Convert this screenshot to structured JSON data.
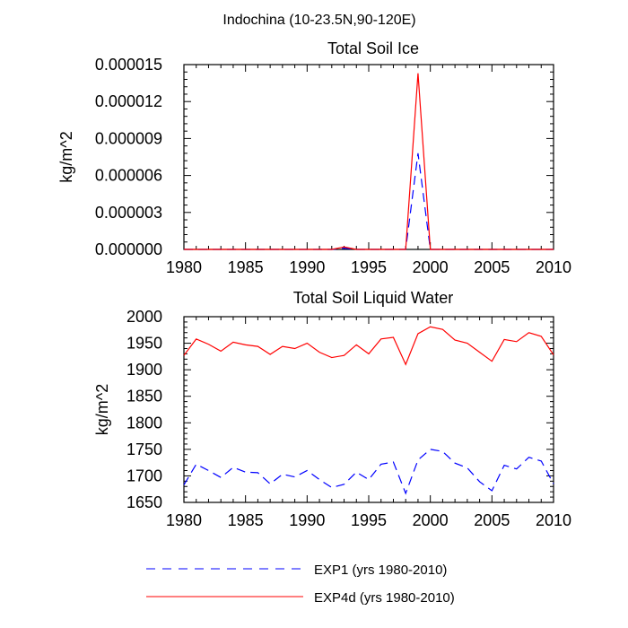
{
  "figure_title": "Indochina (10-23.5N,90-120E)",
  "colors": {
    "exp1": "#0000ff",
    "exp4d": "#ff0000",
    "axis": "#000000"
  },
  "legend": [
    {
      "label": "EXP1 (yrs 1980-2010)",
      "color": "#0000ff",
      "dash": "dashed"
    },
    {
      "label": "EXP4d (yrs 1980-2010)",
      "color": "#ff0000",
      "dash": "solid"
    }
  ],
  "chart_data": [
    {
      "type": "line",
      "title": "Total Soil Ice",
      "xlabel": "",
      "ylabel": "kg/m^2",
      "xlim": [
        1980,
        2010
      ],
      "ylim": [
        0,
        1.5e-05
      ],
      "xticks": [
        1980,
        1985,
        1990,
        1995,
        2000,
        2005,
        2010
      ],
      "yticks": [
        0,
        3e-06,
        6e-06,
        9e-06,
        1.2e-05,
        1.5e-05
      ],
      "ytick_labels": [
        "0.000000",
        "0.000003",
        "0.000006",
        "0.000009",
        "0.000012",
        "0.000015"
      ],
      "x": [
        1980,
        1981,
        1982,
        1983,
        1984,
        1985,
        1986,
        1987,
        1988,
        1989,
        1990,
        1991,
        1992,
        1993,
        1994,
        1995,
        1996,
        1997,
        1998,
        1999,
        2000,
        2001,
        2002,
        2003,
        2004,
        2005,
        2006,
        2007,
        2008,
        2009,
        2010
      ],
      "series": [
        {
          "name": "EXP1 (yrs 1980-2010)",
          "style": "dashed",
          "color": "#0000ff",
          "values": [
            0,
            0,
            0,
            0,
            0,
            0,
            0,
            0,
            0,
            0,
            0,
            0,
            0,
            1e-07,
            0,
            0,
            0,
            0,
            0,
            7.8e-06,
            0,
            0,
            0,
            0,
            0,
            0,
            0,
            0,
            0,
            0,
            0
          ]
        },
        {
          "name": "EXP4d (yrs 1980-2010)",
          "style": "solid",
          "color": "#ff0000",
          "values": [
            0,
            0,
            0,
            0,
            0,
            0,
            0,
            0,
            0,
            0,
            0,
            0,
            0,
            2e-07,
            0,
            0,
            0,
            0,
            0,
            1.43e-05,
            0,
            0,
            0,
            0,
            0,
            0,
            0,
            0,
            0,
            0,
            0
          ]
        }
      ]
    },
    {
      "type": "line",
      "title": "Total Soil Liquid Water",
      "xlabel": "",
      "ylabel": "kg/m^2",
      "xlim": [
        1980,
        2010
      ],
      "ylim": [
        1650,
        2000
      ],
      "xticks": [
        1980,
        1985,
        1990,
        1995,
        2000,
        2005,
        2010
      ],
      "yticks": [
        1650,
        1700,
        1750,
        1800,
        1850,
        1900,
        1950,
        2000
      ],
      "ytick_labels": [
        "1650",
        "1700",
        "1750",
        "1800",
        "1850",
        "1900",
        "1950",
        "2000"
      ],
      "x": [
        1980,
        1981,
        1982,
        1983,
        1984,
        1985,
        1986,
        1987,
        1988,
        1989,
        1990,
        1991,
        1992,
        1993,
        1994,
        1995,
        1996,
        1997,
        1998,
        1999,
        2000,
        2001,
        2002,
        2003,
        2004,
        2005,
        2006,
        2007,
        2008,
        2009,
        2010
      ],
      "series": [
        {
          "name": "EXP1 (yrs 1980-2010)",
          "style": "dashed",
          "color": "#0000ff",
          "values": [
            1683,
            1722,
            1710,
            1697,
            1716,
            1707,
            1706,
            1685,
            1703,
            1698,
            1710,
            1693,
            1678,
            1684,
            1707,
            1693,
            1722,
            1726,
            1667,
            1730,
            1750,
            1746,
            1724,
            1715,
            1689,
            1672,
            1720,
            1713,
            1735,
            1728,
            1685
          ]
        },
        {
          "name": "EXP4d (yrs 1980-2010)",
          "style": "solid",
          "color": "#ff0000",
          "values": [
            1927,
            1958,
            1948,
            1935,
            1952,
            1947,
            1944,
            1929,
            1944,
            1940,
            1950,
            1933,
            1923,
            1927,
            1947,
            1930,
            1958,
            1961,
            1910,
            1968,
            1981,
            1976,
            1956,
            1950,
            1933,
            1916,
            1957,
            1953,
            1970,
            1963,
            1928
          ]
        }
      ]
    }
  ]
}
